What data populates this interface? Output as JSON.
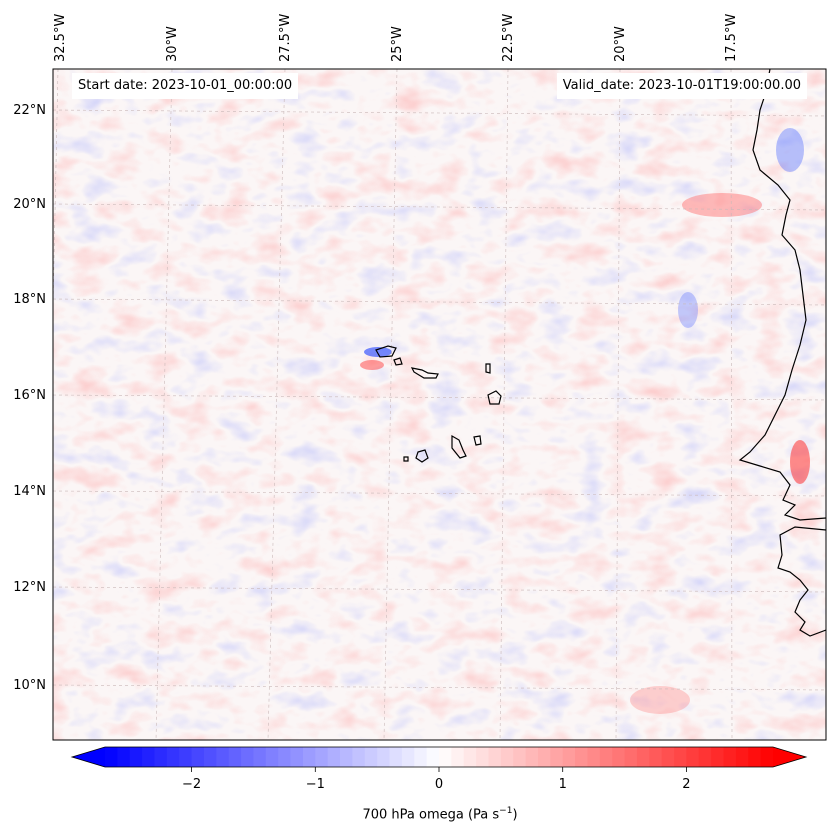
{
  "map": {
    "start_label": "Start date: 2023-10-01_00:00:00",
    "valid_label": "Valid_date: 2023-10-01T19:00:00.00",
    "lon_ticks": [
      "32.5°W",
      "30°W",
      "27.5°W",
      "25°W",
      "22.5°W",
      "20°W",
      "17.5°W"
    ],
    "lat_ticks": [
      "22°N",
      "20°N",
      "18°N",
      "16°N",
      "14°N",
      "12°N",
      "10°N"
    ],
    "field": "700 hPa omega"
  },
  "colorbar": {
    "label_main": "700 hPa omega (Pa s",
    "label_sup": "−1",
    "label_end": ")",
    "ticks": [
      "−2",
      "−1",
      "0",
      "1",
      "2"
    ],
    "tick_values": [
      -2,
      -1,
      0,
      1,
      2
    ],
    "range": [
      -2.7,
      2.7
    ],
    "extend": "both",
    "colormap": "bwr",
    "color_min": "#0000ff",
    "color_mid": "#ffffff",
    "color_max": "#ff0000"
  }
}
